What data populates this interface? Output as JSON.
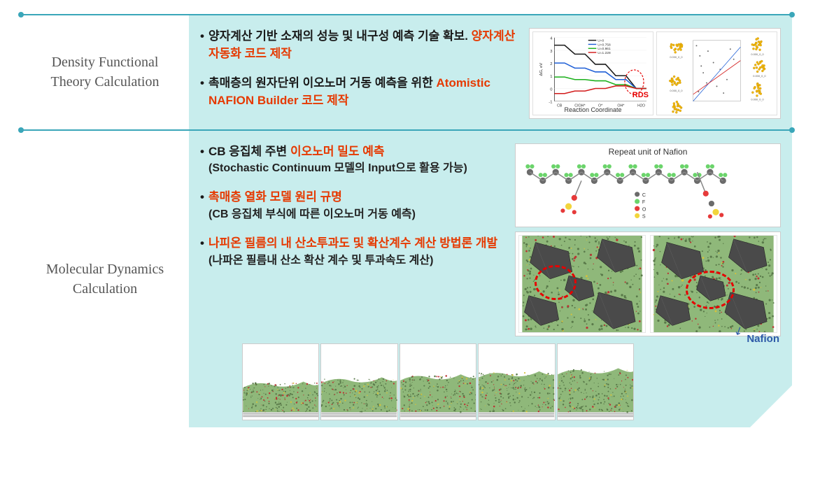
{
  "sections": [
    {
      "title": "Density Functional Theory Calculation",
      "bullets": [
        {
          "parts": [
            {
              "t": "양자계산 기반 소재의 성능 및 내구성 예측 기술 확보. ",
              "hl": false
            },
            {
              "t": "양자계산 자동화 코드 제작",
              "hl": true
            }
          ]
        },
        {
          "parts": [
            {
              "t": "촉매층의 원자단위 이오노머 거동 예측을 위한 ",
              "hl": false
            },
            {
              "t": "Atomistic NAFION Builder 코드 제작",
              "hl": true
            }
          ]
        }
      ],
      "chart_left": {
        "type": "step-line",
        "x_label": "Reaction Coordinate",
        "x_ticks": [
          "CB",
          "CIOH*",
          "O*",
          "OH*",
          "H2O"
        ],
        "y_label": "ΔG, eV",
        "series": [
          {
            "name": "U=0",
            "color": "#1a1a1a",
            "y": [
              3.4,
              3.4,
              2.7,
              2.7,
              1.9,
              1.9,
              1.0,
              1.0,
              0.0,
              0.0
            ]
          },
          {
            "name": "U=0.758",
            "color": "#1f5fd6",
            "y": [
              2.0,
              2.0,
              1.6,
              1.6,
              1.3,
              1.3,
              0.7,
              0.7,
              0.0,
              0.0
            ]
          },
          {
            "name": "U=0.861",
            "color": "#1bb01b",
            "y": [
              0.9,
              0.9,
              0.7,
              0.7,
              0.6,
              0.6,
              0.3,
              0.3,
              0.0,
              0.0
            ]
          },
          {
            "name": "U=1.228",
            "color": "#d21a1a",
            "y": [
              -0.4,
              -0.4,
              -0.2,
              -0.2,
              0.0,
              0.0,
              0.2,
              0.2,
              0.0,
              0.0
            ]
          }
        ],
        "rds_label": "RDS",
        "rds_color": "#e60000"
      },
      "chart_right": {
        "type": "scatter-with-clusters",
        "scatter_color": "#666666",
        "line_colors": [
          "#1f5fd6",
          "#d21a1a"
        ],
        "cluster_color": "#f2b705",
        "n_clusters": 6
      }
    },
    {
      "title": "Molecular Dynamics Calculation",
      "bullets": [
        {
          "parts": [
            {
              "t": "CB 응집체 주변 ",
              "hl": false
            },
            {
              "t": "이오노머 밀도 예측",
              "hl": true
            }
          ],
          "sub": "(Stochastic Continuum 모델의 Input으로 활용 가능)"
        },
        {
          "parts": [
            {
              "t": "촉매층 열화 모델 원리 규명",
              "hl": true
            }
          ],
          "sub": "(CB 응집체 부식에 따른 이오노머 거동 예측)"
        },
        {
          "parts": [
            {
              "t": "나피온 필름의 내 산소투과도 및 확산계수 계산 방법론 개발",
              "hl": true
            }
          ],
          "sub": "(나파온 필름내 산소 확산 계수 및 투과속도 계산)"
        }
      ],
      "nafion_repeat_caption": "Repeat unit of Nafion",
      "nafion_atom_colors": {
        "C": "#6b6b6b",
        "F": "#6bd46b",
        "O": "#e63a3a",
        "S": "#f2d53c"
      },
      "md_box_colors": {
        "matrix": "#8fb87a",
        "particles": "#4a4a4a",
        "spots": "#d6c23a",
        "dots": "#b33"
      },
      "nafion_label": "Nafion",
      "nafion_label_color": "#2e5aa8",
      "film_frames": 5,
      "film_profile": [
        0.48,
        0.55,
        0.6,
        0.65,
        0.7
      ],
      "section_bg": "#c8eded",
      "accent_color": "#3aa6b9"
    }
  ]
}
